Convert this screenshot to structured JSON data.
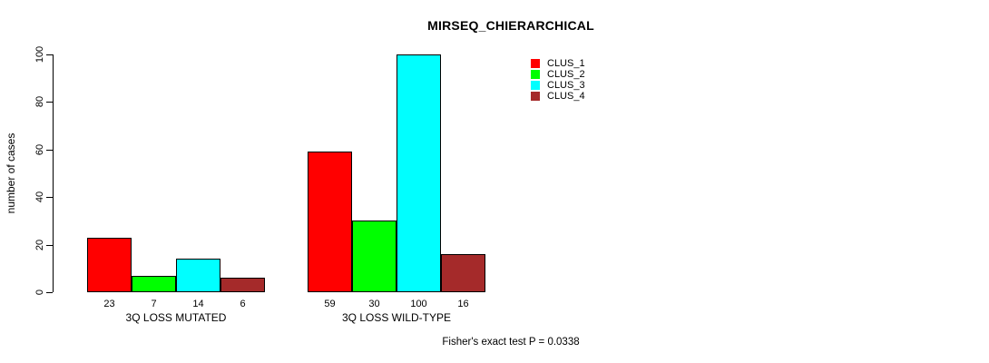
{
  "chart_data": {
    "type": "bar",
    "title": "MIRSEQ_CHIERARCHICAL",
    "ylabel": "number of cases",
    "xlabel": "",
    "ylim": [
      0,
      100
    ],
    "yticks": [
      0,
      20,
      40,
      60,
      80,
      100
    ],
    "grid": false,
    "legend_position": "top-right-inside",
    "categories": [
      "3Q LOSS MUTATED",
      "3Q LOSS WILD-TYPE"
    ],
    "series": [
      {
        "name": "CLUS_1",
        "color": "#FF0000",
        "values": [
          23,
          59
        ]
      },
      {
        "name": "CLUS_2",
        "color": "#00FF00",
        "values": [
          7,
          30
        ]
      },
      {
        "name": "CLUS_3",
        "color": "#00FFFF",
        "values": [
          14,
          100
        ]
      },
      {
        "name": "CLUS_4",
        "color": "#A52A2A",
        "values": [
          6,
          16
        ]
      }
    ],
    "bar_value_labels": true,
    "annotation": "Fisher's exact test P = 0.0338"
  }
}
